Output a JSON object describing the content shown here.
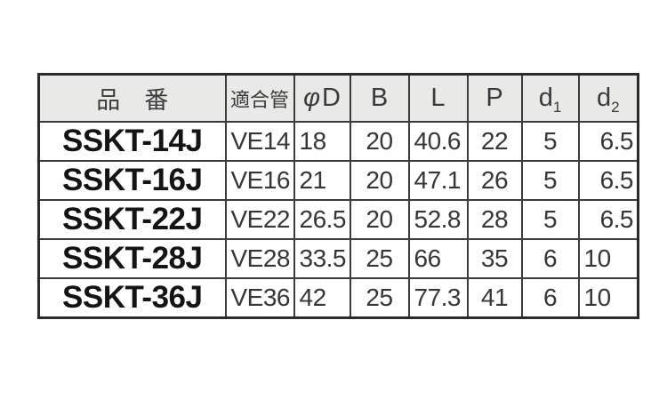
{
  "table": {
    "columns": [
      {
        "id": "hinban",
        "label": "品　番",
        "align": "center"
      },
      {
        "id": "tekigokan",
        "label": "適合管",
        "align": "left"
      },
      {
        "id": "phiD",
        "italic": "φ",
        "label": "D",
        "align": "left"
      },
      {
        "id": "b",
        "label": "B",
        "align": "center"
      },
      {
        "id": "l",
        "label": "L",
        "align": "left"
      },
      {
        "id": "p",
        "label": "P",
        "align": "center"
      },
      {
        "id": "d1",
        "label": "d",
        "sub": "1",
        "align": "center"
      },
      {
        "id": "d2",
        "label": "d",
        "sub": "2",
        "align": "left"
      }
    ],
    "rows": [
      {
        "hinban": "SSKT-14J",
        "tekigokan": "VE14",
        "phiD": "18",
        "b": "20",
        "l": "40.6",
        "p": "22",
        "d1": "5",
        "d2": "6.5",
        "align_override": {
          "d2": "right"
        }
      },
      {
        "hinban": "SSKT-16J",
        "tekigokan": "VE16",
        "phiD": "21",
        "b": "20",
        "l": "47.1",
        "p": "26",
        "d1": "5",
        "d2": "6.5",
        "align_override": {
          "d2": "right"
        }
      },
      {
        "hinban": "SSKT-22J",
        "tekigokan": "VE22",
        "phiD": "26.5",
        "b": "20",
        "l": "52.8",
        "p": "28",
        "d1": "5",
        "d2": "6.5",
        "align_override": {
          "d2": "right"
        }
      },
      {
        "hinban": "SSKT-28J",
        "tekigokan": "VE28",
        "phiD": "33.5",
        "b": "25",
        "l": "66",
        "p": "35",
        "d1": "6",
        "d2": "10",
        "align_override": {
          "d2": "left"
        }
      },
      {
        "hinban": "SSKT-36J",
        "tekigokan": "VE36",
        "phiD": "42",
        "b": "25",
        "l": "77.3",
        "p": "41",
        "d1": "6",
        "d2": "10",
        "align_override": {
          "d2": "left"
        }
      }
    ],
    "colors": {
      "header_bg": "#e9e9e7",
      "grid_border": "#3c3c3c",
      "outer_border": "#2b2b2b",
      "header_text": "#3a3a3a",
      "cell_text": "#363636",
      "product_text": "#141414",
      "page_bg": "#ffffff"
    }
  }
}
